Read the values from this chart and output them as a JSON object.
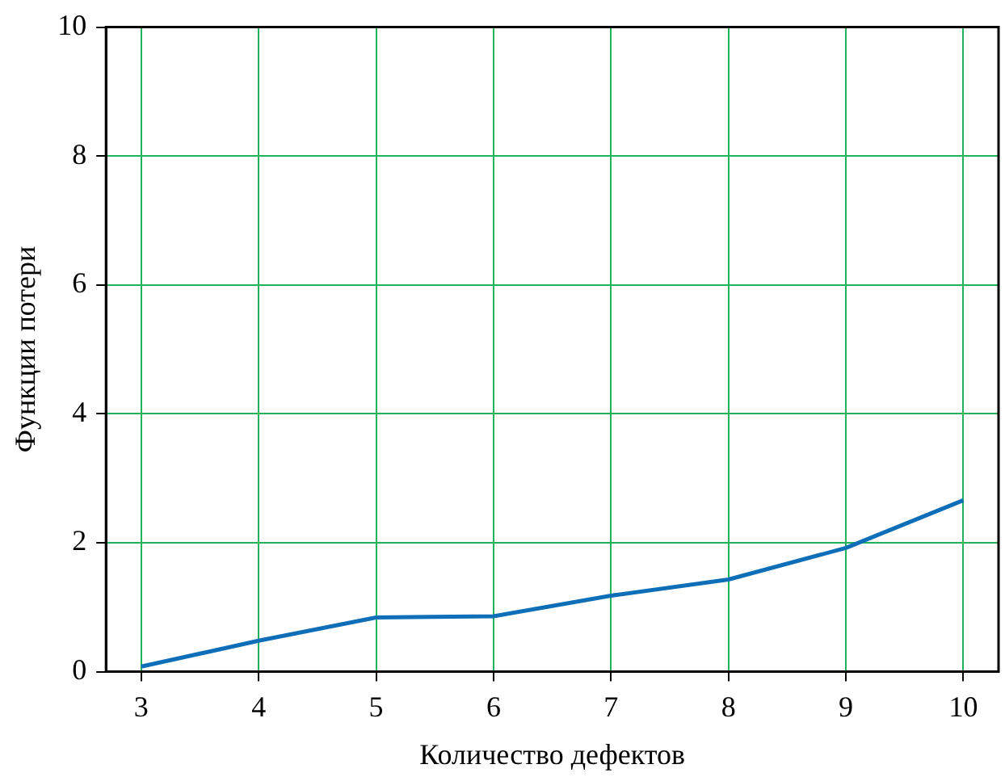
{
  "chart_data": {
    "type": "line",
    "xlabel": "Количество дефектов",
    "ylabel": "Функции потери",
    "x": [
      3,
      4,
      5,
      6,
      7,
      8,
      9,
      10
    ],
    "series": [
      {
        "color": "#0e6fb8",
        "values": [
          0.08,
          0.48,
          0.84,
          0.86,
          1.18,
          1.43,
          1.92,
          2.66
        ]
      }
    ],
    "xlim": [
      2.7,
      10.3
    ],
    "xticks": [
      3,
      4,
      5,
      6,
      7,
      8,
      9,
      10
    ],
    "ylim": [
      0,
      10
    ],
    "yticks": [
      0,
      2,
      4,
      6,
      8,
      10
    ],
    "grid": true,
    "legend": false,
    "marker": "none",
    "line_style": "solid"
  }
}
